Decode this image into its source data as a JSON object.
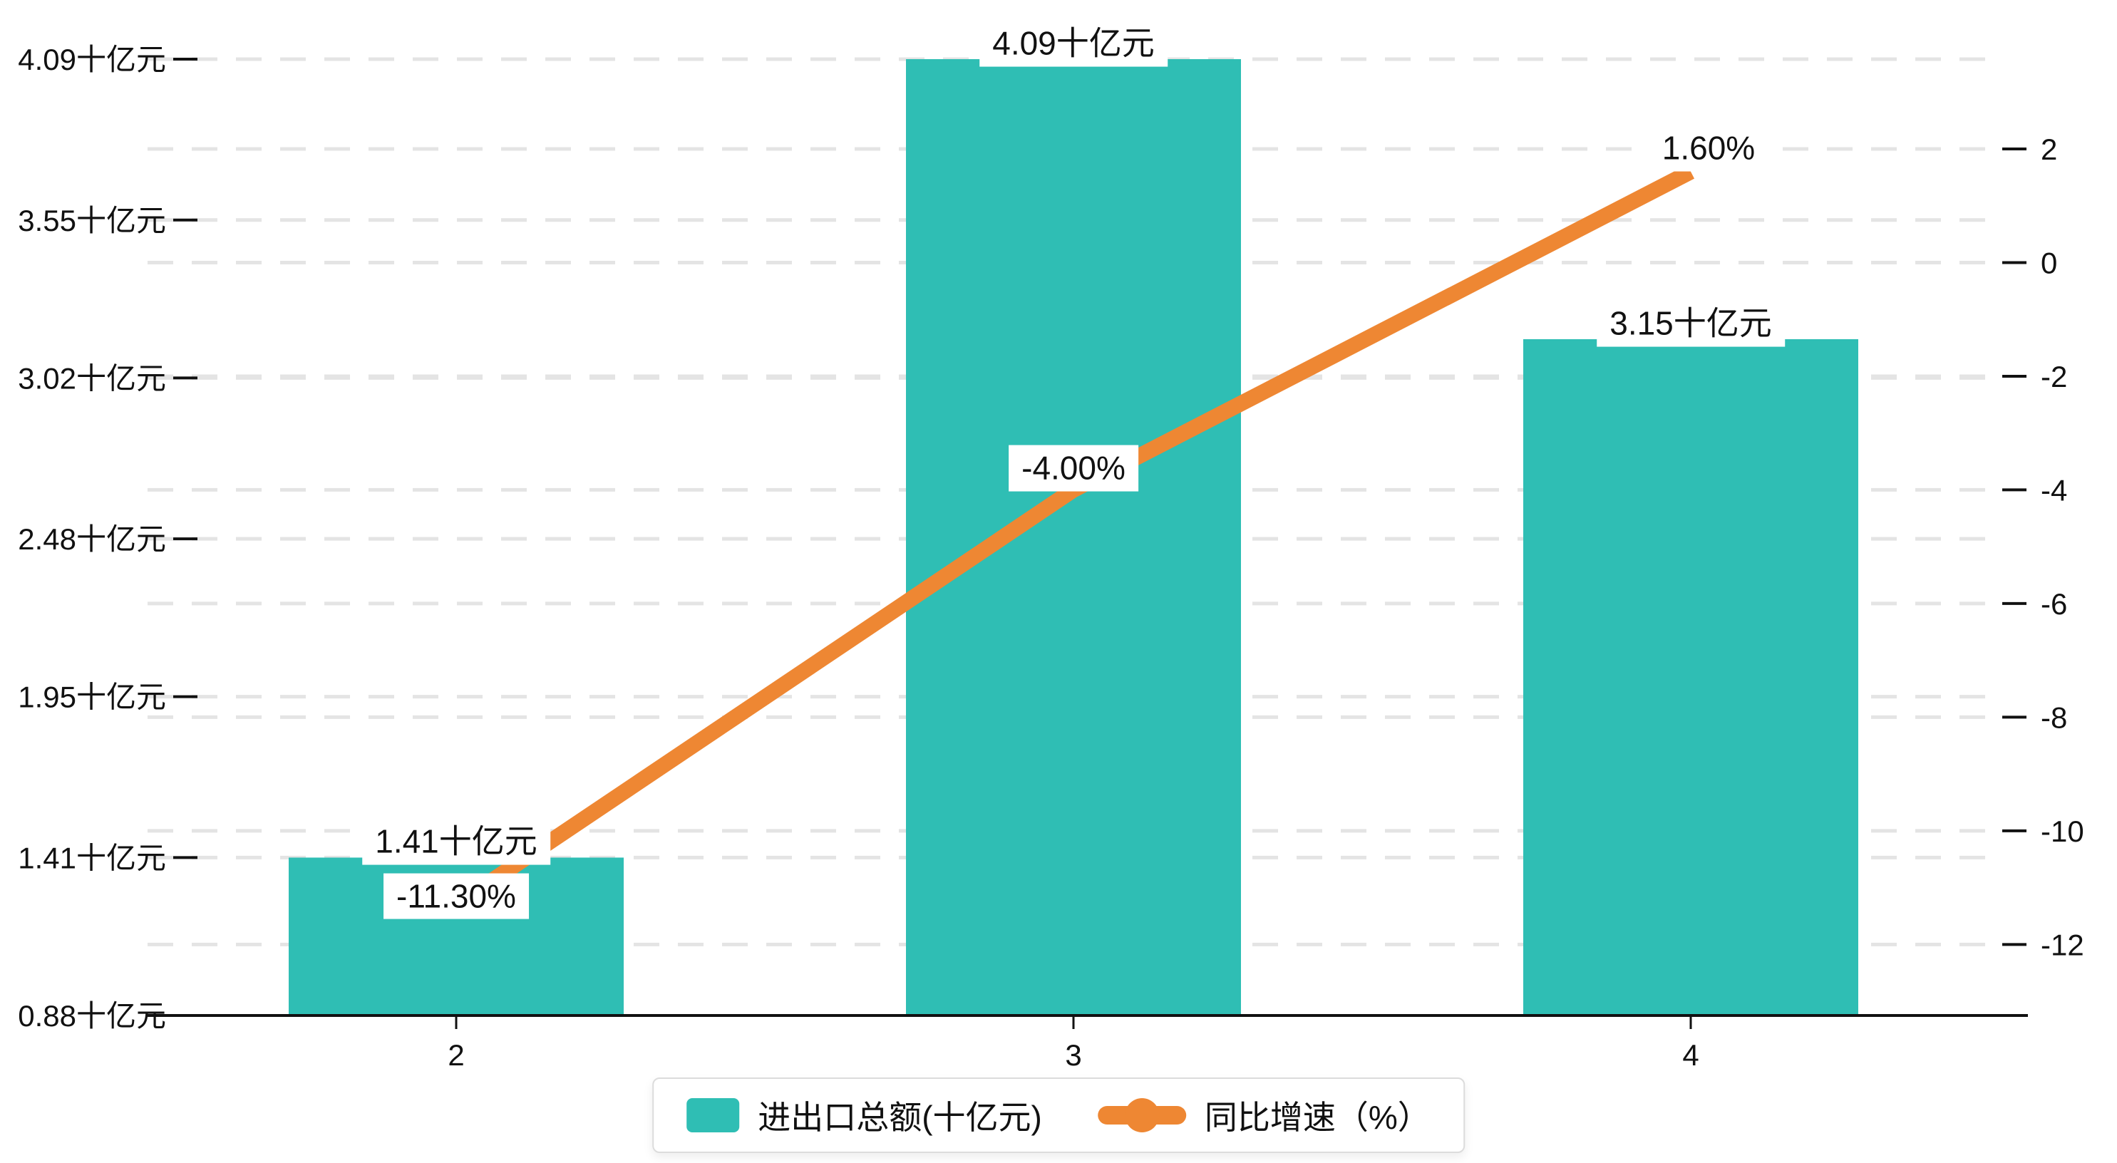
{
  "chart_data": {
    "type": "combo",
    "title": "",
    "categories": [
      "2",
      "3",
      "4"
    ],
    "series": [
      {
        "name": "进出口总额(十亿元)",
        "type": "bar",
        "axis": "left",
        "values": [
          1.41,
          4.09,
          3.15
        ],
        "data_labels": [
          "1.41十亿元",
          "4.09十亿元",
          "3.15十亿元"
        ],
        "color": "#2fbeb4"
      },
      {
        "name": "同比增速（%）",
        "type": "line",
        "axis": "right",
        "values": [
          -11.3,
          -4.0,
          1.6
        ],
        "data_labels": [
          "-11.30%",
          "-4.00%",
          "1.60%"
        ],
        "color": "#ee8733"
      }
    ],
    "left_axis": {
      "tick_labels": [
        "0.88十亿元",
        "1.41十亿元",
        "1.95十亿元",
        "2.48十亿元",
        "3.02十亿元",
        "3.55十亿元",
        "4.09十亿元"
      ],
      "tick_values": [
        0.88,
        1.41,
        1.95,
        2.48,
        3.02,
        3.55,
        4.09
      ],
      "range": [
        0.88,
        4.09
      ]
    },
    "right_axis": {
      "tick_labels": [
        "2",
        "0",
        "-2",
        "-4",
        "-6",
        "-8",
        "-10",
        "-12"
      ],
      "tick_values": [
        2,
        0,
        -2,
        -4,
        -6,
        -8,
        -10,
        -12
      ],
      "range": [
        -13.25,
        3.58
      ]
    },
    "xlabel": "",
    "ylabel": "",
    "legend": {
      "position": "bottom-center",
      "items": [
        "进出口总额(十亿元)",
        "同比增速（%）"
      ]
    },
    "grid": {
      "style": "dashed",
      "on": true
    }
  },
  "colors": {
    "bar": "#2fbeb4",
    "line": "#ee8733",
    "grid": "#e4e4e4",
    "axis": "#111111",
    "text": "#111111",
    "label_bg": "#ffffff",
    "legend_border": "#dcdcdc",
    "background": "#ffffff"
  }
}
